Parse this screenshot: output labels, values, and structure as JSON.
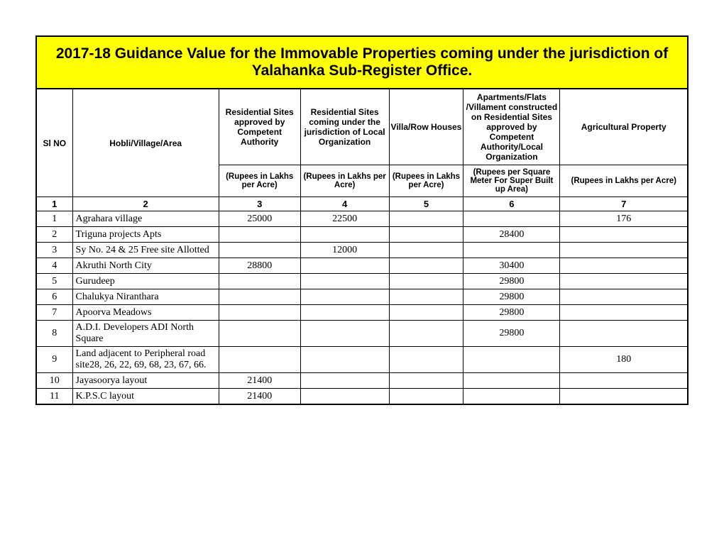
{
  "title": "2017-18 Guidance Value for the Immovable Properties coming under the jurisdiction of Yalahanka Sub-Register Office.",
  "headers": {
    "slno": "Sl NO",
    "area": "Hobli/Village/Area",
    "c3": "Residential Sites approved by Competent Authority",
    "c4": "Residential Sites coming under the jurisdiction of Local Organization",
    "c5": "Villa/Row Houses",
    "c6": "Apartments/Flats /Villament constructed on Residential  Sites approved by Competent Authority/Local Organization",
    "c7": "Agricultural Property"
  },
  "units": {
    "c3": "(Rupees in Lakhs per Acre)",
    "c4": "(Rupees in Lakhs per Acre)",
    "c5": "(Rupees in Lakhs per Acre)",
    "c6": "(Rupees per Square Meter For Super Built up Area)",
    "c7": "(Rupees in Lakhs per Acre)"
  },
  "colnums": {
    "c1": "1",
    "c2": "2",
    "c3": "3",
    "c4": "4",
    "c5": "5",
    "c6": "6",
    "c7": "7"
  },
  "rows": [
    {
      "slno": "1",
      "area": "Agrahara village",
      "c3": "25000",
      "c4": "22500",
      "c5": "",
      "c6": "",
      "c7": "176",
      "tall": false
    },
    {
      "slno": "2",
      "area": "Triguna projects Apts",
      "c3": "",
      "c4": "",
      "c5": "",
      "c6": "28400",
      "c7": "",
      "tall": false
    },
    {
      "slno": "3",
      "area": "Sy No. 24 & 25 Free site Allotted",
      "c3": "",
      "c4": "12000",
      "c5": "",
      "c6": "",
      "c7": "",
      "tall": false
    },
    {
      "slno": "4",
      "area": "Akruthi North City",
      "c3": "28800",
      "c4": "",
      "c5": "",
      "c6": "30400",
      "c7": "",
      "tall": false
    },
    {
      "slno": "5",
      "area": "Gurudeep",
      "c3": "",
      "c4": "",
      "c5": "",
      "c6": "29800",
      "c7": "",
      "tall": false
    },
    {
      "slno": "6",
      "area": "Chalukya Niranthara",
      "c3": "",
      "c4": "",
      "c5": "",
      "c6": "29800",
      "c7": "",
      "tall": false
    },
    {
      "slno": "7",
      "area": "Apoorva Meadows",
      "c3": "",
      "c4": "",
      "c5": "",
      "c6": "29800",
      "c7": "",
      "tall": false
    },
    {
      "slno": "8",
      "area": "A.D.I. Developers ADI North Square",
      "c3": "",
      "c4": "",
      "c5": "",
      "c6": "29800",
      "c7": "",
      "tall": true
    },
    {
      "slno": "9",
      "area": "Land adjacent to Peripheral road site28, 26, 22, 69, 68, 23, 67, 66.",
      "c3": "",
      "c4": "",
      "c5": "",
      "c6": "",
      "c7": "180",
      "tall": true
    },
    {
      "slno": "10",
      "area": "Jayasoorya layout",
      "c3": "21400",
      "c4": "",
      "c5": "",
      "c6": "",
      "c7": "",
      "tall": false
    },
    {
      "slno": "11",
      "area": "K.P.S.C layout",
      "c3": "21400",
      "c4": "",
      "c5": "",
      "c6": "",
      "c7": "",
      "tall": false
    }
  ]
}
